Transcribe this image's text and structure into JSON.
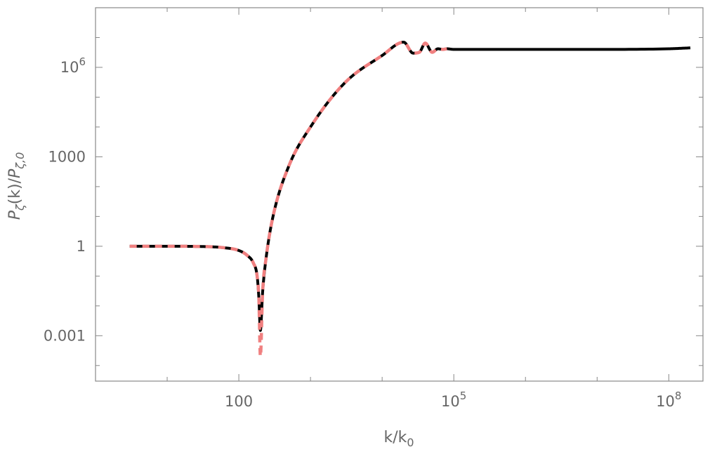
{
  "chart_data": {
    "type": "line",
    "xscale": "log",
    "yscale": "log",
    "xlim": [
      1,
      300000000
    ],
    "ylim": [
      3e-05,
      100000000
    ],
    "grid": false,
    "legend": "none",
    "xlabel": "k/k0",
    "xlabel_parts": {
      "base": "k/k",
      "sub": "0"
    },
    "ylabel": "Pζ(k)/Pζ,0",
    "ylabel_parts": {
      "p1": "P",
      "sub1": "ζ",
      "mid": "(k)/",
      "p2": "P",
      "sub2": "ζ,0"
    },
    "x_ticks": [
      {
        "value": 100,
        "base": "100",
        "exp": ""
      },
      {
        "value": 100000,
        "base": "10",
        "exp": "5"
      },
      {
        "value": 100000000,
        "base": "10",
        "exp": "8"
      }
    ],
    "y_ticks": [
      {
        "value": 0.001,
        "base": "0.001",
        "exp": ""
      },
      {
        "value": 1,
        "base": "1",
        "exp": ""
      },
      {
        "value": 1000,
        "base": "1000",
        "exp": ""
      },
      {
        "value": 1000000,
        "base": "10",
        "exp": "6"
      }
    ],
    "series": [
      {
        "style": "solid",
        "color": "#000000",
        "x": [
          3,
          10,
          30,
          60,
          100,
          130,
          160,
          180,
          190,
          200,
          215,
          240,
          300,
          500,
          1000,
          3000,
          10000,
          20000,
          27000,
          33000,
          40000,
          50000,
          60000,
          70000,
          80000,
          100000,
          1000000,
          10000000,
          100000000,
          200000000
        ],
        "y": [
          1,
          1,
          0.98,
          0.9,
          0.72,
          0.5,
          0.27,
          0.1,
          0.02,
          0.0015,
          0.03,
          0.4,
          10,
          500,
          10000,
          300000,
          2500000,
          7000000,
          3000000,
          3200000,
          6500000,
          3200000,
          4200000,
          4000000,
          4200000,
          4000000,
          4000000,
          4000000,
          4200000,
          4500000
        ]
      },
      {
        "style": "dashed",
        "color": "#f08080",
        "x": [
          3,
          10,
          30,
          60,
          100,
          130,
          160,
          180,
          190,
          200,
          215,
          240,
          300,
          500,
          1000,
          3000,
          10000,
          20000,
          27000,
          33000,
          40000,
          50000,
          60000,
          70000,
          80000
        ],
        "y": [
          1,
          1,
          0.98,
          0.9,
          0.72,
          0.5,
          0.27,
          0.1,
          0.02,
          0.0002,
          0.03,
          0.4,
          10,
          500,
          10000,
          300000,
          2500000,
          7000000,
          3000000,
          3200000,
          6500000,
          3200000,
          4200000,
          4000000,
          4200000
        ]
      }
    ]
  }
}
